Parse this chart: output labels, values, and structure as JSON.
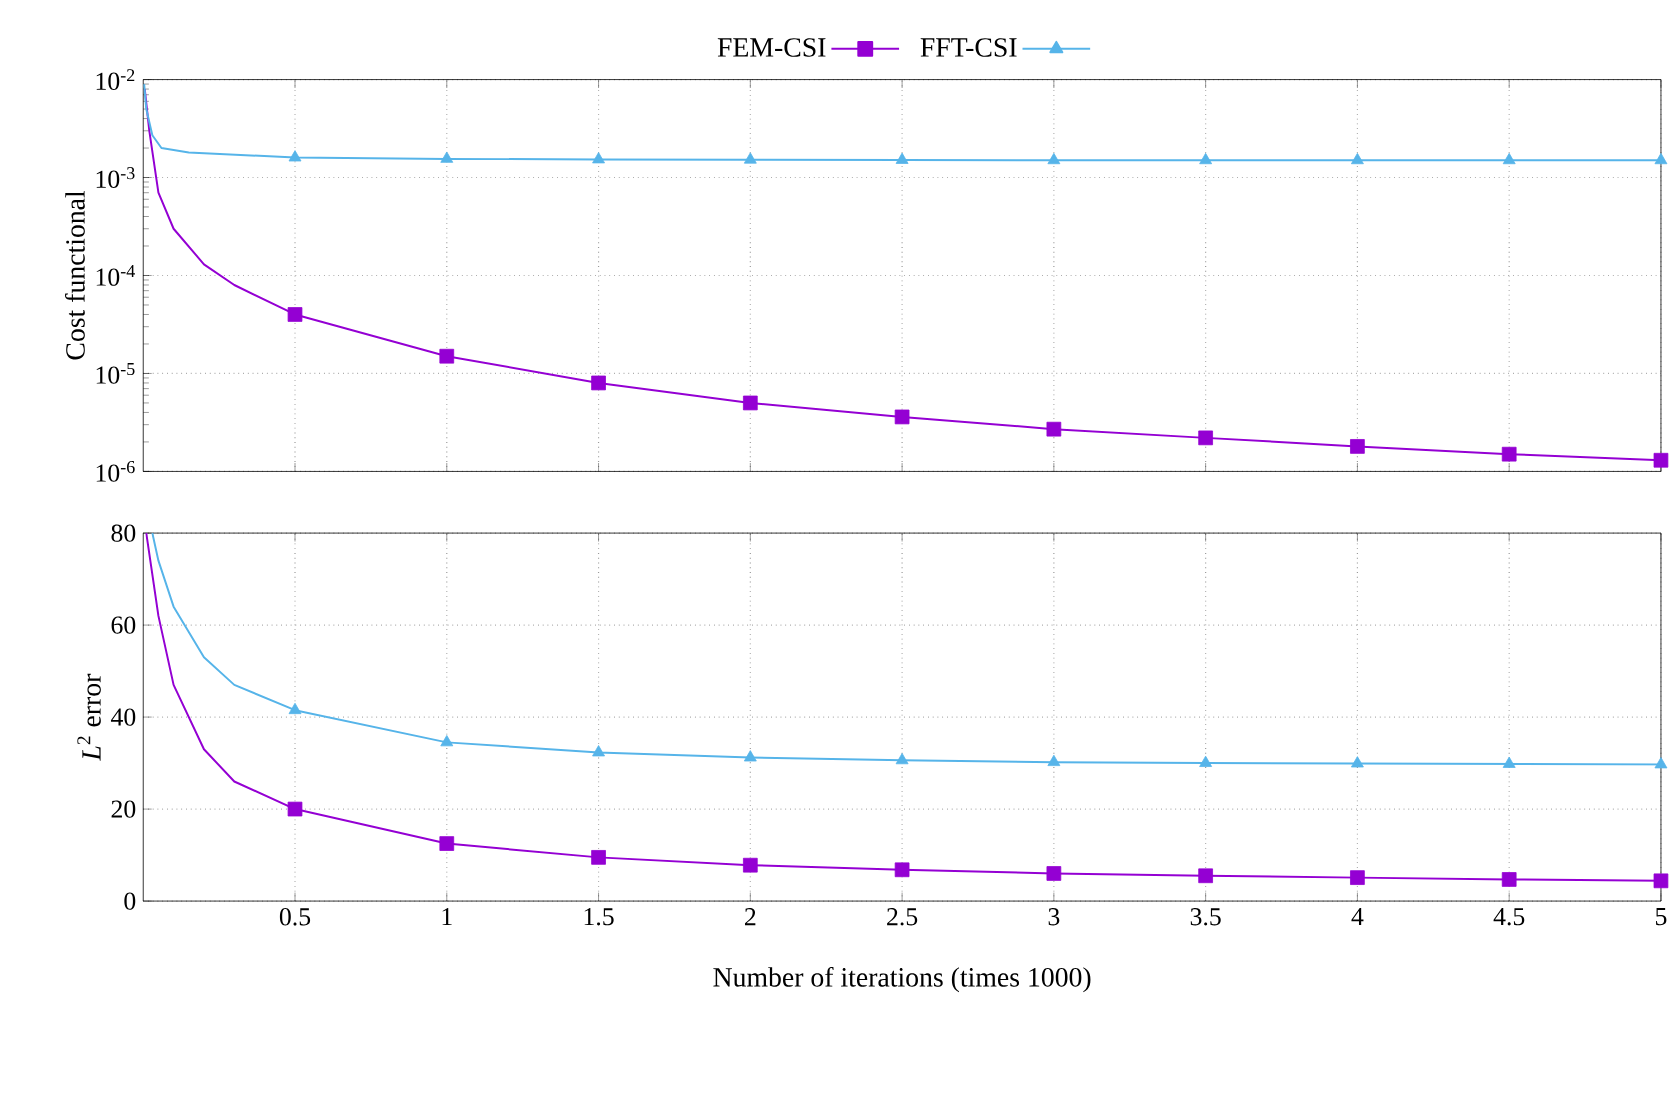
{
  "chart_data": [
    {
      "type": "line",
      "ylabel": "Cost functional",
      "log": "y",
      "grid": true,
      "legend": "top",
      "tick_labels": "y",
      "xlim": [
        0,
        5
      ],
      "xticks": [
        0.5,
        1,
        1.5,
        2,
        2.5,
        3,
        3.5,
        4,
        4.5,
        5
      ],
      "ylim": [
        1e-06,
        0.01
      ],
      "yticks": [
        {
          "value": 1e-06,
          "label": "10$^{-6}$"
        },
        {
          "value": 1e-05,
          "label": "10$^{-5}$"
        },
        {
          "value": 0.0001,
          "label": "10$^{-4}$"
        },
        {
          "value": 0.001,
          "label": "10$^{-3}$"
        },
        {
          "value": 0.01,
          "label": "10$^{-2}$"
        }
      ],
      "series": [
        {
          "name": "FEM-CSI",
          "color": "#9400d3",
          "x": [
            0.005,
            0.02,
            0.05,
            0.1,
            0.2,
            0.3,
            0.5,
            1,
            1.5,
            2,
            2.5,
            3,
            3.5,
            4,
            4.5,
            5
          ],
          "values": [
            0.008,
            0.003,
            0.0007,
            0.0003,
            0.00013,
            8e-05,
            4e-05,
            1.5e-05,
            8e-06,
            5e-06,
            3.6e-06,
            2.7e-06,
            2.2e-06,
            1.8e-06,
            1.5e-06,
            1.3e-06
          ]
        },
        {
          "type": "scatter",
          "color": "#9400d3",
          "marker": "square",
          "x": [
            0.5,
            1,
            1.5,
            2,
            2.5,
            3,
            3.5,
            4,
            4.5,
            5
          ],
          "values": [
            4e-05,
            1.5e-05,
            8e-06,
            5e-06,
            3.6e-06,
            2.7e-06,
            2.2e-06,
            1.8e-06,
            1.5e-06,
            1.3e-06
          ]
        },
        {
          "name": "FFT-CSI",
          "color": "#56b4e9",
          "x": [
            0.003,
            0.01,
            0.03,
            0.06,
            0.15,
            0.5,
            1,
            1.5,
            2,
            2.5,
            3,
            3.5,
            4,
            4.5,
            5
          ],
          "values": [
            0.009,
            0.005,
            0.0027,
            0.002,
            0.0018,
            0.0016,
            0.00155,
            0.00153,
            0.00152,
            0.00151,
            0.0015,
            0.0015,
            0.0015,
            0.0015,
            0.0015
          ]
        },
        {
          "type": "scatter",
          "color": "#56b4e9",
          "marker": "triangle",
          "x": [
            0.5,
            1,
            1.5,
            2,
            2.5,
            3,
            3.5,
            4,
            4.5,
            5
          ],
          "values": [
            0.0016,
            0.00155,
            0.00153,
            0.00152,
            0.00151,
            0.0015,
            0.0015,
            0.0015,
            0.0015,
            0.0015
          ]
        }
      ]
    },
    {
      "type": "line",
      "ylabel": "*L*$^{2}$ error",
      "xlabel": "Number of iterations (times 1000)",
      "grid": true,
      "xlim": [
        0,
        5
      ],
      "xticks": [
        0.5,
        1,
        1.5,
        2,
        2.5,
        3,
        3.5,
        4,
        4.5,
        5
      ],
      "ylim": [
        0,
        80
      ],
      "yticks": [
        0,
        20,
        40,
        60,
        80
      ],
      "series": [
        {
          "color": "#9400d3",
          "x": [
            0.01,
            0.05,
            0.1,
            0.2,
            0.3,
            0.5,
            1,
            1.5,
            2,
            2.5,
            3,
            3.5,
            4,
            4.5,
            5
          ],
          "values": [
            80,
            62,
            47,
            33,
            26,
            20,
            12.5,
            9.5,
            7.8,
            6.8,
            6,
            5.5,
            5.1,
            4.7,
            4.4
          ]
        },
        {
          "type": "scatter",
          "color": "#9400d3",
          "marker": "square",
          "x": [
            0.5,
            1,
            1.5,
            2,
            2.5,
            3,
            3.5,
            4,
            4.5,
            5
          ],
          "values": [
            20,
            12.5,
            9.5,
            7.8,
            6.8,
            6,
            5.5,
            5.1,
            4.7,
            4.4
          ]
        },
        {
          "color": "#56b4e9",
          "x": [
            0.03,
            0.05,
            0.1,
            0.2,
            0.3,
            0.5,
            1,
            1.5,
            2,
            2.5,
            3,
            3.5,
            4,
            4.5,
            5
          ],
          "values": [
            80,
            74,
            64,
            53,
            47,
            41.5,
            34.5,
            32.3,
            31.2,
            30.6,
            30.2,
            30,
            29.9,
            29.8,
            29.7
          ]
        },
        {
          "type": "scatter",
          "color": "#56b4e9",
          "marker": "triangle",
          "x": [
            0.5,
            1,
            1.5,
            2,
            2.5,
            3,
            3.5,
            4,
            4.5,
            5
          ],
          "values": [
            41.5,
            34.5,
            32.3,
            31.2,
            30.6,
            30.2,
            30,
            29.9,
            29.8,
            29.7
          ]
        }
      ]
    }
  ]
}
